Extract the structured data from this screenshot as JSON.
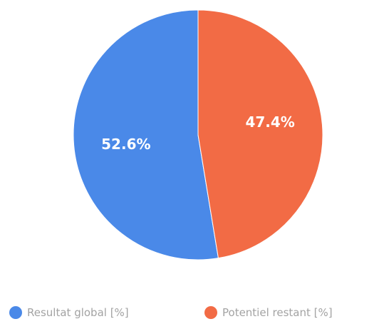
{
  "chart_data": {
    "type": "pie",
    "title": "",
    "start_angle_deg": 0,
    "direction": "counterclockwise",
    "slices": [
      {
        "name": "Resultat global [%]",
        "value": 52.6,
        "label": "52.6%",
        "color": "#4a89e8"
      },
      {
        "name": "Potentiel restant [%]",
        "value": 47.4,
        "label": "47.4%",
        "color": "#f26b45"
      }
    ],
    "legend": {
      "placement": "bottom",
      "items": [
        "Resultat global [%]",
        "Potentiel restant [%]"
      ]
    }
  }
}
